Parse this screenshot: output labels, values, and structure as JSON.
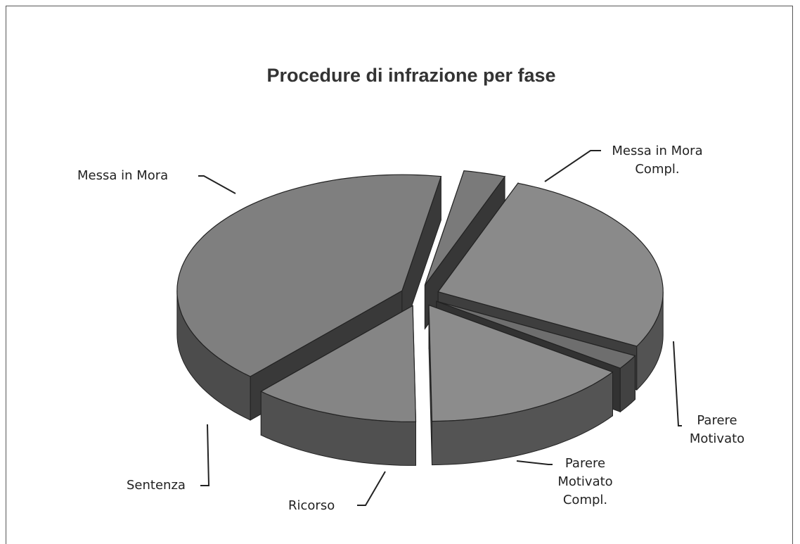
{
  "chart_data": {
    "type": "pie3d",
    "title": "Procedure di infrazione per fase",
    "categories": [
      "Messa in Mora Compl.",
      "Parere Motivato",
      "Parere Motivato Compl.",
      "Ricorso",
      "Sentenza",
      "Messa in Mora"
    ],
    "values": [
      3,
      27,
      2,
      15,
      12,
      41
    ],
    "colors": [
      "#7a7a7a",
      "#8a8a8a",
      "#6e6e6e",
      "#8c8c8c",
      "#858585",
      "#7f7f7f"
    ]
  }
}
